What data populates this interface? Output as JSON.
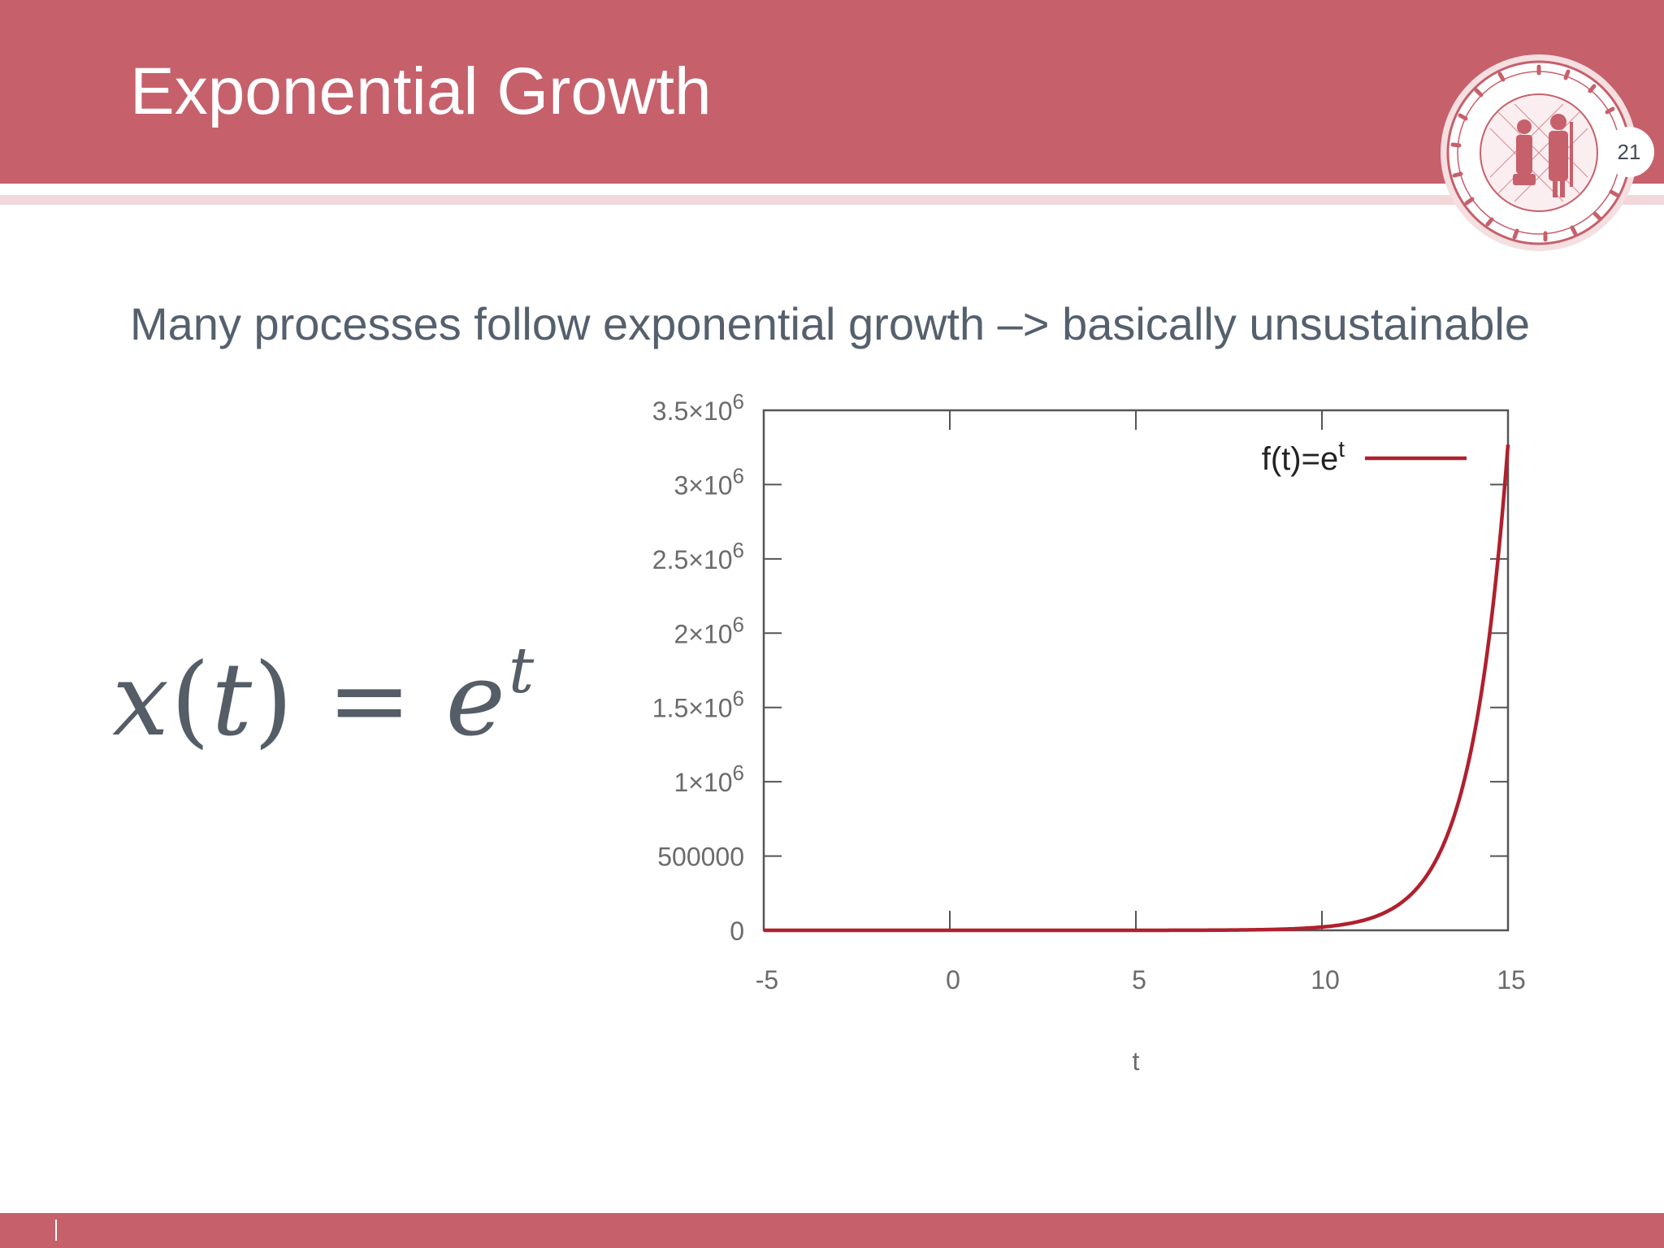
{
  "slide": {
    "title": "Exponential Growth",
    "page_number": "21",
    "subtitle": "Many processes follow exponential growth –> basically unsustainable"
  },
  "equation": {
    "lhs_var": "x",
    "lhs_arg": "t",
    "relation": "=",
    "base": "e",
    "exponent": "t"
  },
  "seal": {
    "lettering": "SIGILLVM UNIVERSITATIS STUDII PRAGENSIS"
  },
  "colors": {
    "header": "#c6606b",
    "stripe": "#f3d6d9",
    "curve": "#b0202e",
    "text": "#55606d"
  },
  "chart_data": {
    "type": "line",
    "title": "",
    "xlabel": "t",
    "ylabel": "",
    "xlim": [
      -5,
      15
    ],
    "ylim": [
      0,
      3500000
    ],
    "xticks": [
      -5,
      0,
      5,
      10,
      15
    ],
    "xtick_labels": [
      "-5",
      "0",
      "5",
      "10",
      "15"
    ],
    "yticks": [
      0,
      500000,
      1000000,
      1500000,
      2000000,
      2500000,
      3000000,
      3500000
    ],
    "ytick_labels": [
      {
        "mantissa": "0",
        "exp": ""
      },
      {
        "mantissa": "500000",
        "exp": ""
      },
      {
        "mantissa": "1×10",
        "exp": "6"
      },
      {
        "mantissa": "1.5×10",
        "exp": "6"
      },
      {
        "mantissa": "2×10",
        "exp": "6"
      },
      {
        "mantissa": "2.5×10",
        "exp": "6"
      },
      {
        "mantissa": "3×10",
        "exp": "6"
      },
      {
        "mantissa": "3.5×10",
        "exp": "6"
      }
    ],
    "grid": false,
    "legend_position": "top-right",
    "series": [
      {
        "name": "f(t)=e",
        "name_sup": "t",
        "function": "exp",
        "color": "#b0202e",
        "x": [
          -5,
          0,
          5,
          8,
          10,
          11,
          12,
          13,
          14,
          14.5,
          15
        ],
        "values": [
          0.0067,
          1,
          148.4,
          2981,
          22026,
          59874,
          162755,
          442413,
          1202604,
          1982759,
          3269017
        ]
      }
    ]
  }
}
